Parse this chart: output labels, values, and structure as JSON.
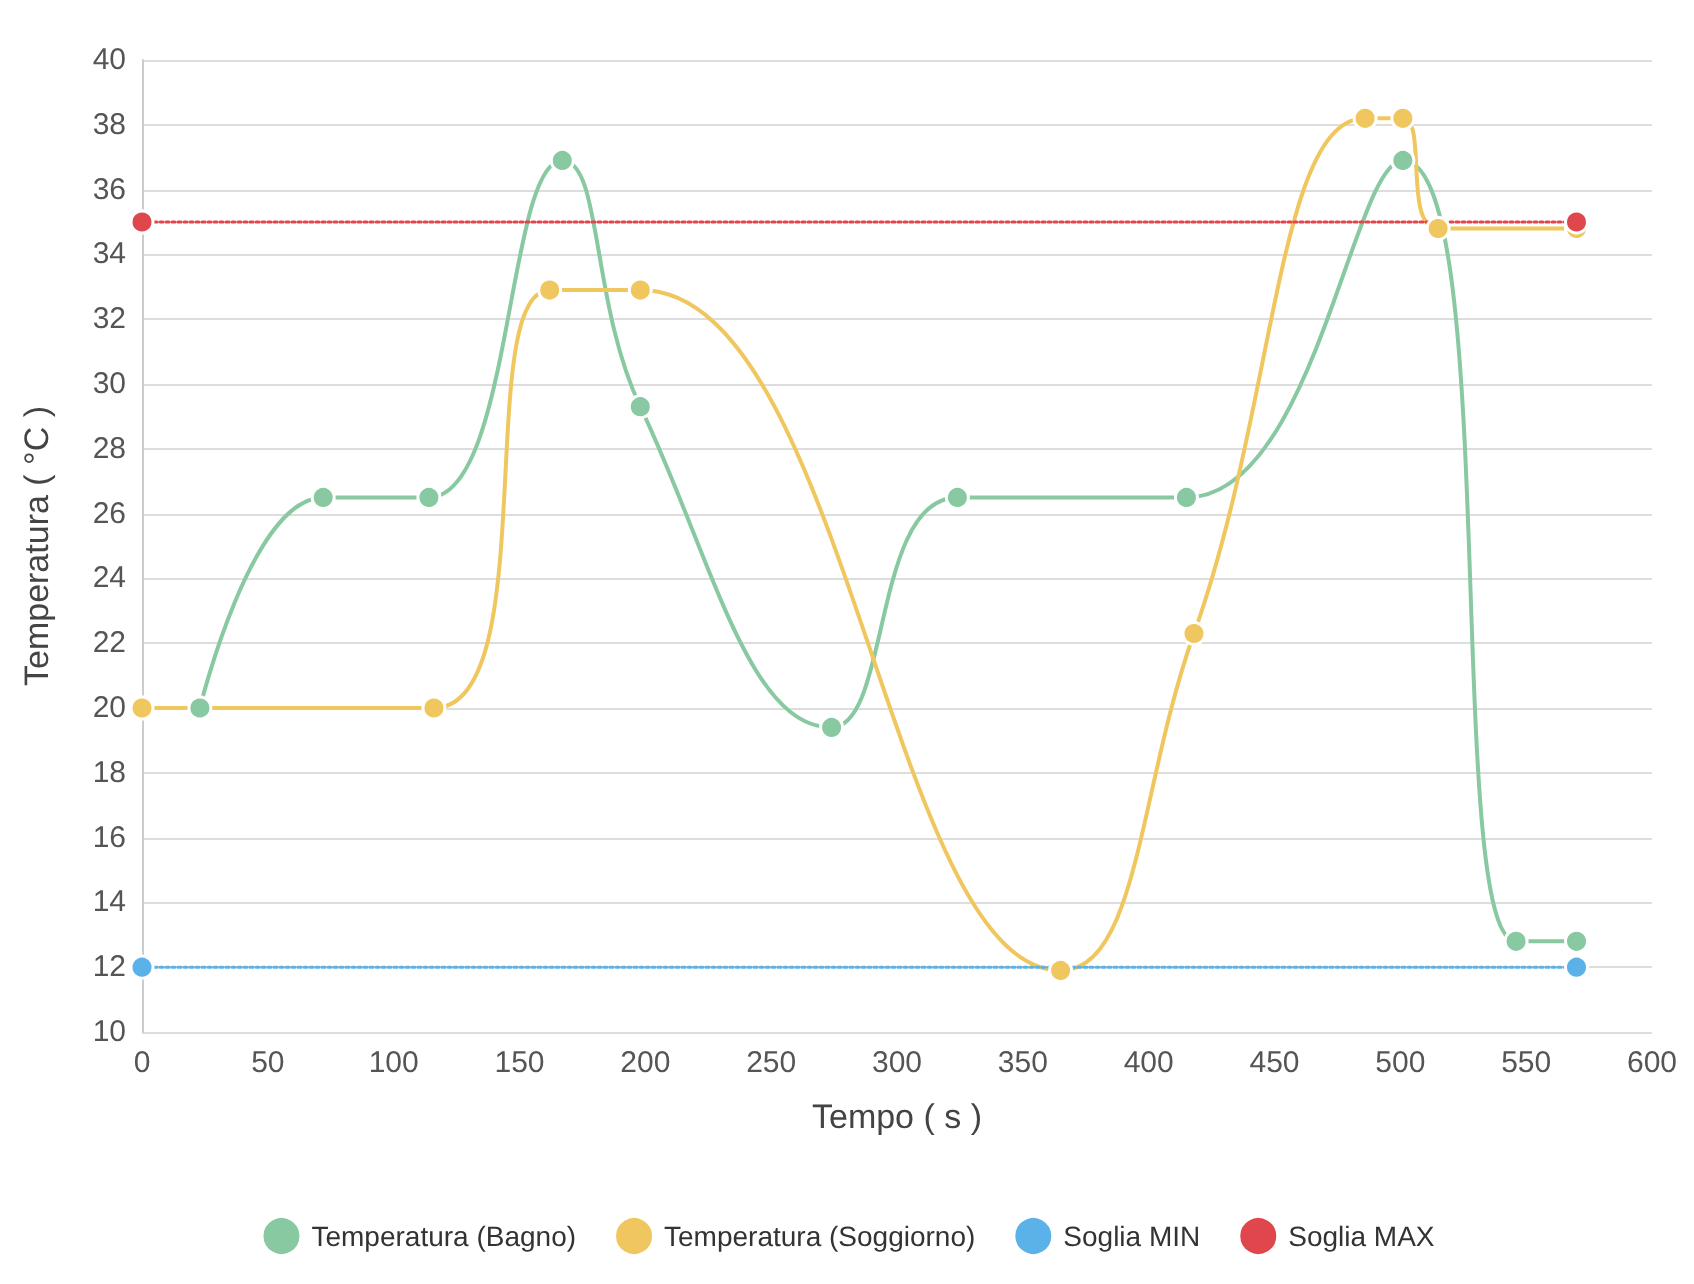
{
  "chart_data": {
    "type": "line",
    "xlabel": "Tempo ( s )",
    "ylabel": "Temperatura ( °C )",
    "xlim": [
      0,
      600
    ],
    "xticks": [
      0,
      50,
      100,
      150,
      200,
      250,
      300,
      350,
      400,
      450,
      500,
      550,
      600
    ],
    "ylim": [
      10,
      40
    ],
    "yticks": [
      10,
      12,
      14,
      16,
      18,
      20,
      22,
      24,
      26,
      28,
      30,
      32,
      34,
      36,
      38,
      40
    ],
    "grid": "y",
    "legend": "bottom",
    "marker": "circle",
    "series": [
      {
        "name": "Temperatura (Bagno)",
        "color": "#88c9a1",
        "x": [
          23,
          72,
          114,
          167,
          198,
          274,
          324,
          415,
          501,
          546,
          570
        ],
        "values": [
          20,
          26.5,
          26.5,
          36.9,
          29.3,
          19.4,
          26.5,
          26.5,
          36.9,
          12.8,
          12.8
        ]
      },
      {
        "name": "Temperatura (Soggiorno)",
        "color": "#f0c75e",
        "x": [
          0,
          116,
          162,
          198,
          365,
          418,
          486,
          501,
          515,
          570
        ],
        "values": [
          20,
          20,
          32.9,
          32.9,
          11.9,
          22.3,
          38.2,
          38.2,
          34.8,
          34.8
        ]
      },
      {
        "name": "Soglia MIN",
        "color": "#5bb2e8",
        "line_style": "dotted",
        "x": [
          0,
          570
        ],
        "values": [
          12,
          12
        ]
      },
      {
        "name": "Soglia MAX",
        "color": "#e0474c",
        "line_style": "dotted",
        "x": [
          0,
          570
        ],
        "values": [
          35,
          35
        ]
      }
    ]
  }
}
